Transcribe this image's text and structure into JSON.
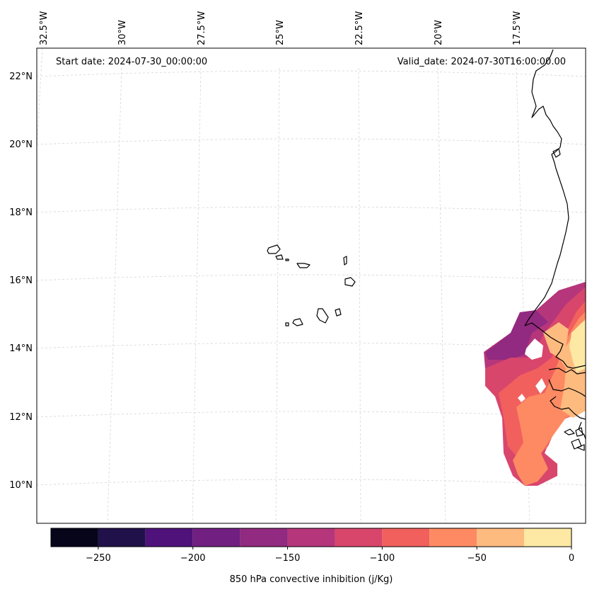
{
  "map": {
    "start_date": "Start date: 2024-07-30_00:00:00",
    "valid_date": "Valid_date: 2024-07-30T16:00:00.00",
    "lon_labels": [
      "32.5°W",
      "30°W",
      "27.5°W",
      "25°W",
      "22.5°W",
      "20°W",
      "17.5°W"
    ],
    "lat_labels": [
      "22°N",
      "20°N",
      "18°N",
      "16°N",
      "14°N",
      "12°N",
      "10°N"
    ],
    "land_color": "#ffffff",
    "coast_color": "#000000",
    "grid_color": "#d0d0d0"
  },
  "chart_data": {
    "type": "heatmap",
    "variable": "850 hPa convective inhibition (j/Kg)",
    "colorbar": {
      "label": "850 hPa convective inhibition (j/Kg)",
      "levels": [
        -275,
        -250,
        -225,
        -200,
        -175,
        -150,
        -125,
        -100,
        -75,
        -50,
        -25,
        0
      ],
      "tick_values": [
        -250,
        -200,
        -150,
        -100,
        -50,
        0
      ],
      "tick_labels": [
        "−250",
        "−200",
        "−150",
        "−100",
        "−50",
        "0"
      ],
      "colors": [
        "#07051a",
        "#21114b",
        "#4f127b",
        "#711f81",
        "#912a80",
        "#b5367a",
        "#d8466c",
        "#f1605d",
        "#fd8a62",
        "#febb80",
        "#fde8a4"
      ]
    }
  }
}
